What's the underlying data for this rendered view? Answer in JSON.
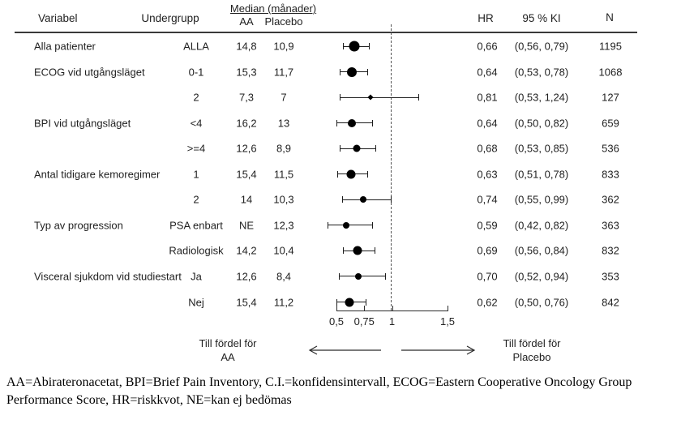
{
  "chart_data": {
    "type": "scatter",
    "subtype": "forest-plot",
    "x_axis": {
      "scale": "linear",
      "range": [
        0.5,
        1.5
      ],
      "reference_line": 1,
      "ticks": [
        {
          "value": 0.5,
          "label": "0,5"
        },
        {
          "value": 0.75,
          "label": "0,75"
        },
        {
          "value": 1,
          "label": "1"
        },
        {
          "value": 1.5,
          "label": "1,5"
        }
      ]
    },
    "headers": {
      "variabel": "Variabel",
      "undergrupp": "Undergrupp",
      "median_group": "Median (månader)",
      "aa": "AA",
      "placebo": "Placebo",
      "hr": "HR",
      "ki": "95 % KI",
      "n": "N"
    },
    "rows": [
      {
        "variable": "Alla patienter",
        "subgroup": "ALLA",
        "median_aa": "14,8",
        "median_placebo": "10,9",
        "hr": 0.66,
        "hr_label": "0,66",
        "ci_low": 0.56,
        "ci_high": 0.79,
        "ci_label": "(0,56, 0,79)",
        "n": 1195,
        "n_label": "1195"
      },
      {
        "variable": "ECOG vid utgångsläget",
        "subgroup": "0-1",
        "median_aa": "15,3",
        "median_placebo": "11,7",
        "hr": 0.64,
        "hr_label": "0,64",
        "ci_low": 0.53,
        "ci_high": 0.78,
        "ci_label": "(0,53, 0,78)",
        "n": 1068,
        "n_label": "1068"
      },
      {
        "variable": "",
        "subgroup": "2",
        "median_aa": "7,3",
        "median_placebo": "7",
        "hr": 0.81,
        "hr_label": "0,81",
        "ci_low": 0.53,
        "ci_high": 1.24,
        "ci_label": "(0,53, 1,24)",
        "n": 127,
        "n_label": "127"
      },
      {
        "variable": "BPI vid utgångsläget",
        "subgroup": "<4",
        "median_aa": "16,2",
        "median_placebo": "13",
        "hr": 0.64,
        "hr_label": "0,64",
        "ci_low": 0.5,
        "ci_high": 0.82,
        "ci_label": "(0,50, 0,82)",
        "n": 659,
        "n_label": "659"
      },
      {
        "variable": "",
        "subgroup": ">=4",
        "median_aa": "12,6",
        "median_placebo": "8,9",
        "hr": 0.68,
        "hr_label": "0,68",
        "ci_low": 0.53,
        "ci_high": 0.85,
        "ci_label": "(0,53, 0,85)",
        "n": 536,
        "n_label": "536"
      },
      {
        "variable": "Antal tidigare kemoregimer",
        "subgroup": "1",
        "median_aa": "15,4",
        "median_placebo": "11,5",
        "hr": 0.63,
        "hr_label": "0,63",
        "ci_low": 0.51,
        "ci_high": 0.78,
        "ci_label": "(0,51, 0,78)",
        "n": 833,
        "n_label": "833"
      },
      {
        "variable": "",
        "subgroup": "2",
        "median_aa": "14",
        "median_placebo": "10,3",
        "hr": 0.74,
        "hr_label": "0,74",
        "ci_low": 0.55,
        "ci_high": 0.99,
        "ci_label": "(0,55, 0,99)",
        "n": 362,
        "n_label": "362"
      },
      {
        "variable": "Typ av progression",
        "subgroup": "PSA enbart",
        "median_aa": "NE",
        "median_placebo": "12,3",
        "hr": 0.59,
        "hr_label": "0,59",
        "ci_low": 0.42,
        "ci_high": 0.82,
        "ci_label": "(0,42, 0,82)",
        "n": 363,
        "n_label": "363"
      },
      {
        "variable": "",
        "subgroup": "Radiologisk",
        "median_aa": "14,2",
        "median_placebo": "10,4",
        "hr": 0.69,
        "hr_label": "0,69",
        "ci_low": 0.56,
        "ci_high": 0.84,
        "ci_label": "(0,56, 0,84)",
        "n": 832,
        "n_label": "832"
      },
      {
        "variable": "Visceral sjukdom vid studiestart",
        "subgroup": "Ja",
        "median_aa": "12,6",
        "median_placebo": "8,4",
        "hr": 0.7,
        "hr_label": "0,70",
        "ci_low": 0.52,
        "ci_high": 0.94,
        "ci_label": "(0,52, 0,94)",
        "n": 353,
        "n_label": "353"
      },
      {
        "variable": "",
        "subgroup": "Nej",
        "median_aa": "15,4",
        "median_placebo": "11,2",
        "hr": 0.62,
        "hr_label": "0,62",
        "ci_low": 0.5,
        "ci_high": 0.76,
        "ci_label": "(0,50, 0,76)",
        "n": 842,
        "n_label": "842"
      }
    ],
    "favors": {
      "left_line1": "Till fördel för",
      "left_line2": "AA",
      "right_line1": "Till fördel för",
      "right_line2": "Placebo"
    }
  },
  "footnote": {
    "line1": "AA=Abirateronacetat, BPI=Brief Pain Inventory, C.I.=konfidensintervall, ECOG=Eastern Cooperative Oncology Group",
    "line2": "Performance Score, HR=riskkvot, NE=kan ej bedömas"
  },
  "colors": {
    "text": "#1f1f1f",
    "line": "#2b2b2b",
    "marker": "#000000",
    "reference_dash": "#555555"
  }
}
